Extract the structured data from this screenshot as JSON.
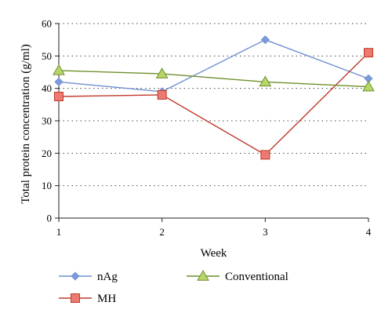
{
  "chart_data": {
    "type": "line",
    "title": "",
    "xlabel": "Week",
    "ylabel": "Total protein concentration (g/ml)",
    "x": [
      1,
      2,
      3,
      4
    ],
    "xlim": [
      1,
      4
    ],
    "ylim": [
      0,
      60
    ],
    "yticks": [
      0,
      10,
      20,
      30,
      40,
      50,
      60
    ],
    "xticks": [
      1,
      2,
      3,
      4
    ],
    "grid": "horizontal dotted",
    "legend_position": "bottom",
    "series": [
      {
        "name": "nAg",
        "values": [
          42,
          39,
          55,
          43
        ],
        "color": "#6f8fd2",
        "marker": "diamond",
        "marker_color": "#7b9ad8"
      },
      {
        "name": "MH",
        "values": [
          37.5,
          38,
          19.5,
          51
        ],
        "color": "#c0392b",
        "marker": "square",
        "marker_color": "#ec7a70"
      },
      {
        "name": "Conventional",
        "values": [
          45.5,
          44.5,
          42,
          40.5
        ],
        "color": "#6f8f2a",
        "marker": "triangle",
        "marker_color": "#b7d66a"
      }
    ]
  }
}
